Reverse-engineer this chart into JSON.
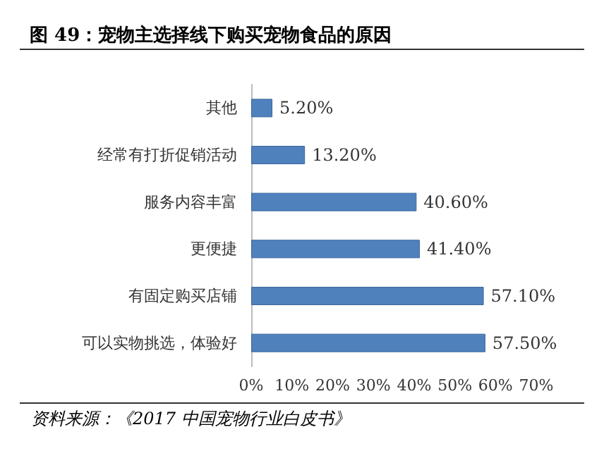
{
  "chart_data": {
    "type": "bar",
    "orientation": "horizontal",
    "title": "图 49：宠物主选择线下购买宠物食品的原因",
    "categories": [
      "其他",
      "经常有打折促销活动",
      "服务内容丰富",
      "更便捷",
      "有固定购买店铺",
      "可以实物挑选，体验好"
    ],
    "values": [
      5.2,
      13.2,
      40.6,
      41.4,
      57.1,
      57.5
    ],
    "value_labels": [
      "5.20%",
      "13.20%",
      "40.60%",
      "41.40%",
      "57.10%",
      "57.50%"
    ],
    "color": "#4f81bd",
    "xlim": [
      0,
      70
    ],
    "xticks": [
      {
        "value": 0,
        "label": "0%"
      },
      {
        "value": 10,
        "label": "10%"
      },
      {
        "value": 20,
        "label": "20%"
      },
      {
        "value": 30,
        "label": "30%"
      },
      {
        "value": 40,
        "label": "40%"
      },
      {
        "value": 50,
        "label": "50%"
      },
      {
        "value": 60,
        "label": "60%"
      },
      {
        "value": 70,
        "label": "70%"
      }
    ],
    "grid": false,
    "annotations": [
      "资料来源：《2017 中国宠物行业白皮书》"
    ]
  }
}
